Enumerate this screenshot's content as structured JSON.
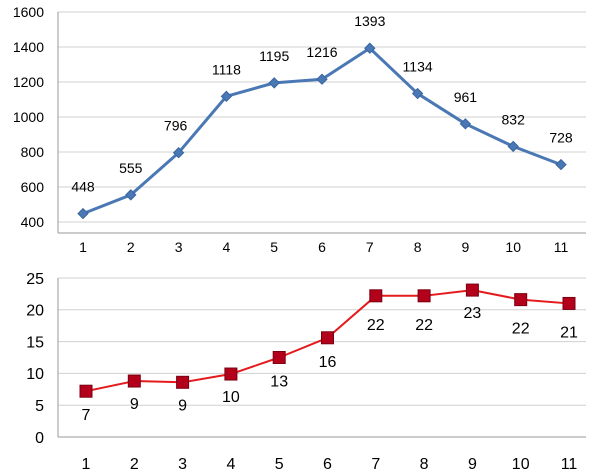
{
  "chart_data": [
    {
      "type": "line",
      "categories": [
        "1",
        "2",
        "3",
        "4",
        "5",
        "6",
        "7",
        "8",
        "9",
        "10",
        "11"
      ],
      "series": [
        {
          "values": [
            448,
            555,
            796,
            1118,
            1195,
            1216,
            1393,
            1134,
            961,
            832,
            728
          ],
          "color": "#4a78b5",
          "marker": "diamond"
        }
      ],
      "data_labels": [
        "448",
        "555",
        "796",
        "1118",
        "1195",
        "1216",
        "1393",
        "1134",
        "961",
        "832",
        "728"
      ],
      "ylim": [
        400,
        1600
      ],
      "yticks": [
        "400",
        "600",
        "800",
        "1000",
        "1200",
        "1400",
        "1600"
      ],
      "grid": "horizontal",
      "title": "",
      "xlabel": "",
      "ylabel": ""
    },
    {
      "type": "line",
      "categories": [
        "1",
        "2",
        "3",
        "4",
        "5",
        "6",
        "7",
        "8",
        "9",
        "10",
        "11"
      ],
      "series": [
        {
          "values": [
            7.2,
            8.8,
            8.6,
            9.9,
            12.5,
            15.6,
            22.2,
            22.2,
            23.1,
            21.6,
            21.0
          ],
          "color": "#e41a1c",
          "marker_fill": "#b3001b",
          "marker": "square"
        }
      ],
      "data_labels": [
        "7",
        "9",
        "9",
        "10",
        "13",
        "16",
        "22",
        "22",
        "23",
        "22",
        "21"
      ],
      "ylim": [
        0,
        25
      ],
      "yticks": [
        "0",
        "5",
        "10",
        "15",
        "20",
        "25"
      ],
      "grid": "horizontal",
      "title": "",
      "xlabel": "",
      "ylabel": ""
    }
  ]
}
